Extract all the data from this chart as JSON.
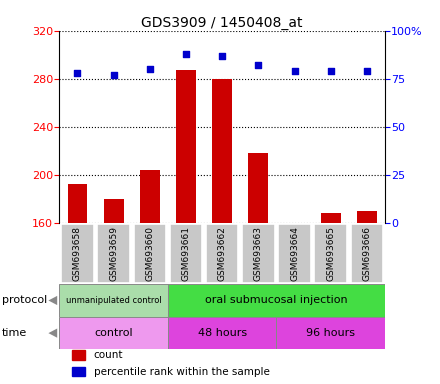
{
  "title": "GDS3909 / 1450408_at",
  "samples": [
    "GSM693658",
    "GSM693659",
    "GSM693660",
    "GSM693661",
    "GSM693662",
    "GSM693663",
    "GSM693664",
    "GSM693665",
    "GSM693666"
  ],
  "counts": [
    192,
    180,
    204,
    287,
    280,
    218,
    159,
    168,
    170
  ],
  "percentile_ranks": [
    78,
    77,
    80,
    88,
    87,
    82,
    79,
    79,
    79
  ],
  "ylim_left": [
    160,
    320
  ],
  "ylim_right": [
    0,
    100
  ],
  "yticks_left": [
    160,
    200,
    240,
    280,
    320
  ],
  "yticks_right": [
    0,
    25,
    50,
    75,
    100
  ],
  "bar_color": "#cc0000",
  "dot_color": "#0000cc",
  "protocol_groups": [
    {
      "label": "unmanipulated control",
      "start": 0,
      "end": 3,
      "color": "#aaddaa"
    },
    {
      "label": "oral submucosal injection",
      "start": 3,
      "end": 9,
      "color": "#44dd44"
    }
  ],
  "time_groups": [
    {
      "label": "control",
      "start": 0,
      "end": 3,
      "color": "#ee99ee"
    },
    {
      "label": "48 hours",
      "start": 3,
      "end": 6,
      "color": "#dd44dd"
    },
    {
      "label": "96 hours",
      "start": 6,
      "end": 9,
      "color": "#dd44dd"
    }
  ],
  "sample_box_color": "#c8c8c8",
  "legend_items": [
    {
      "label": "count",
      "color": "#cc0000"
    },
    {
      "label": "percentile rank within the sample",
      "color": "#0000cc"
    }
  ]
}
